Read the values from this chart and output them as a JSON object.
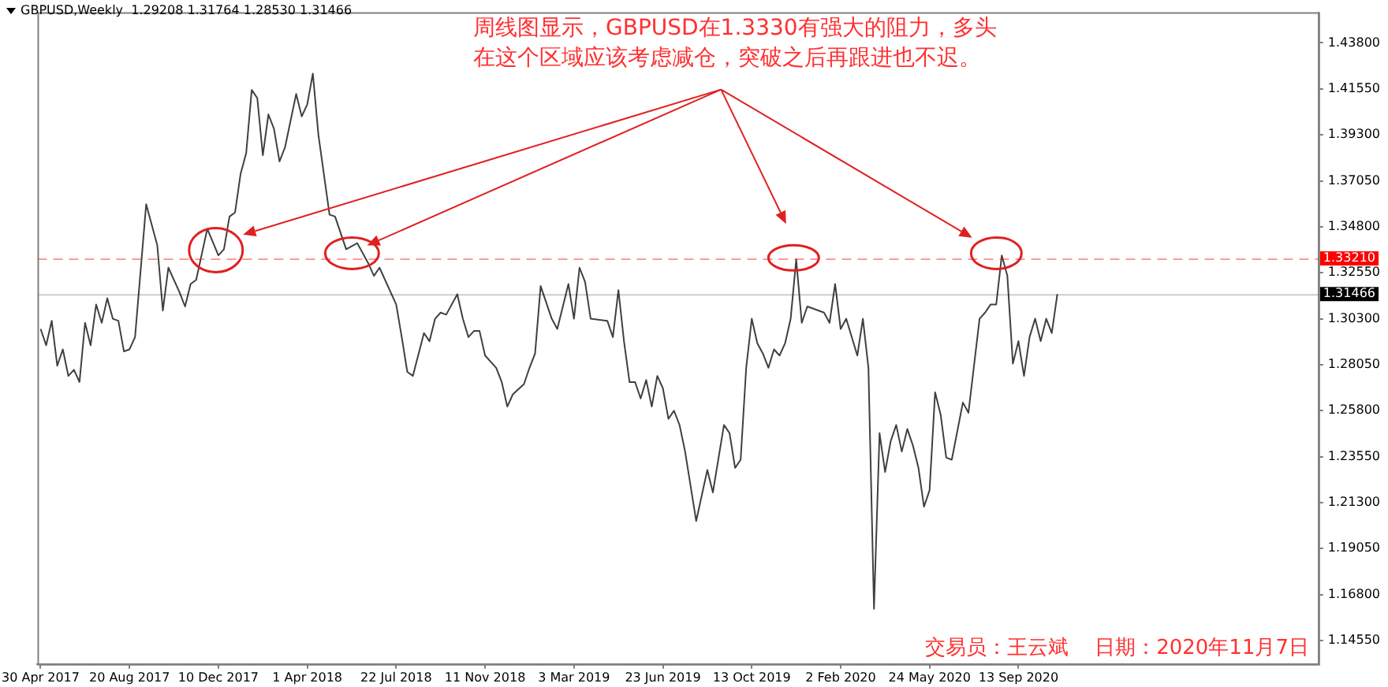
{
  "chart_data": {
    "type": "line",
    "title": "GBPUSD,Weekly  1.29208 1.31764 1.28530 1.31466",
    "annotations": [
      "周线图显示，GBPUSD在1.3330有强大的阻力，多头在这个区域应该考虑减仓，突破之后再跟进也不迟。",
      "交易员：王云斌    日期：2020年11月7日"
    ],
    "x": [
      "2017-04-30",
      "2017-05-07",
      "2017-05-14",
      "2017-05-21",
      "2017-05-28",
      "2017-06-04",
      "2017-06-11",
      "2017-06-18",
      "2017-06-25",
      "2017-07-02",
      "2017-07-09",
      "2017-07-16",
      "2017-07-23",
      "2017-07-30",
      "2017-08-06",
      "2017-08-13",
      "2017-08-20",
      "2017-08-27",
      "2017-09-10",
      "2017-09-24",
      "2017-10-01",
      "2017-10-08",
      "2017-10-22",
      "2017-10-29",
      "2017-11-05",
      "2017-11-12",
      "2017-11-26",
      "2017-12-10",
      "2017-12-17",
      "2017-12-24",
      "2017-12-31",
      "2018-01-07",
      "2018-01-14",
      "2018-01-21",
      "2018-01-28",
      "2018-02-04",
      "2018-02-11",
      "2018-02-18",
      "2018-02-25",
      "2018-03-04",
      "2018-03-18",
      "2018-03-25",
      "2018-04-01",
      "2018-04-08",
      "2018-04-15",
      "2018-04-29",
      "2018-05-06",
      "2018-05-20",
      "2018-06-03",
      "2018-06-17",
      "2018-06-24",
      "2018-07-01",
      "2018-07-15",
      "2018-07-22",
      "2018-07-29",
      "2018-08-05",
      "2018-08-12",
      "2018-08-26",
      "2018-09-02",
      "2018-09-09",
      "2018-09-16",
      "2018-09-23",
      "2018-10-07",
      "2018-10-14",
      "2018-10-21",
      "2018-10-28",
      "2018-11-04",
      "2018-11-11",
      "2018-11-25",
      "2018-12-02",
      "2018-12-09",
      "2018-12-16",
      "2018-12-30",
      "2019-01-06",
      "2019-01-13",
      "2019-01-20",
      "2019-02-03",
      "2019-02-10",
      "2019-02-24",
      "2019-03-03",
      "2019-03-10",
      "2019-03-17",
      "2019-03-24",
      "2019-04-14",
      "2019-04-21",
      "2019-04-28",
      "2019-05-05",
      "2019-05-12",
      "2019-05-19",
      "2019-05-26",
      "2019-06-02",
      "2019-06-09",
      "2019-06-16",
      "2019-06-23",
      "2019-06-30",
      "2019-07-07",
      "2019-07-14",
      "2019-07-21",
      "2019-08-04",
      "2019-08-18",
      "2019-08-25",
      "2019-09-08",
      "2019-09-15",
      "2019-09-22",
      "2019-09-29",
      "2019-10-06",
      "2019-10-13",
      "2019-10-20",
      "2019-10-27",
      "2019-11-03",
      "2019-11-10",
      "2019-11-17",
      "2019-11-24",
      "2019-12-01",
      "2019-12-08",
      "2019-12-15",
      "2019-12-22",
      "2020-01-12",
      "2020-01-19",
      "2020-01-26",
      "2020-02-02",
      "2020-02-09",
      "2020-02-23",
      "2020-03-01",
      "2020-03-08",
      "2020-03-15",
      "2020-03-22",
      "2020-03-29",
      "2020-04-05",
      "2020-04-12",
      "2020-04-19",
      "2020-04-26",
      "2020-05-03",
      "2020-05-10",
      "2020-05-17",
      "2020-05-24",
      "2020-05-31",
      "2020-06-07",
      "2020-06-14",
      "2020-06-21",
      "2020-07-05",
      "2020-07-12",
      "2020-07-26",
      "2020-08-02",
      "2020-08-09",
      "2020-08-16",
      "2020-08-23",
      "2020-08-30",
      "2020-09-06",
      "2020-09-13",
      "2020-09-20",
      "2020-09-27",
      "2020-10-04",
      "2020-10-11",
      "2020-10-18",
      "2020-10-25",
      "2020-11-01"
    ],
    "series": [
      {
        "color": "#404040",
        "values": [
          1.298,
          1.29,
          1.302,
          1.28,
          1.288,
          1.275,
          1.278,
          1.272,
          1.301,
          1.29,
          1.31,
          1.301,
          1.313,
          1.303,
          1.302,
          1.287,
          1.288,
          1.294,
          1.359,
          1.339,
          1.307,
          1.328,
          1.316,
          1.309,
          1.32,
          1.322,
          1.347,
          1.334,
          1.337,
          1.353,
          1.355,
          1.374,
          1.384,
          1.415,
          1.411,
          1.383,
          1.403,
          1.396,
          1.38,
          1.387,
          1.413,
          1.402,
          1.408,
          1.423,
          1.393,
          1.354,
          1.353,
          1.337,
          1.34,
          1.33,
          1.324,
          1.328,
          1.316,
          1.31,
          1.294,
          1.277,
          1.275,
          1.296,
          1.292,
          1.303,
          1.306,
          1.305,
          1.315,
          1.303,
          1.294,
          1.297,
          1.297,
          1.285,
          1.279,
          1.272,
          1.26,
          1.266,
          1.271,
          1.279,
          1.286,
          1.319,
          1.303,
          1.298,
          1.32,
          1.303,
          1.328,
          1.321,
          1.303,
          1.302,
          1.294,
          1.317,
          1.292,
          1.272,
          1.272,
          1.264,
          1.273,
          1.26,
          1.275,
          1.269,
          1.254,
          1.258,
          1.251,
          1.238,
          1.204,
          1.229,
          1.218,
          1.251,
          1.247,
          1.23,
          1.234,
          1.279,
          1.303,
          1.291,
          1.286,
          1.279,
          1.288,
          1.285,
          1.291,
          1.303,
          1.332,
          1.301,
          1.309,
          1.306,
          1.301,
          1.32,
          1.298,
          1.303,
          1.285,
          1.303,
          1.279,
          1.161,
          1.247,
          1.228,
          1.243,
          1.251,
          1.238,
          1.249,
          1.241,
          1.23,
          1.211,
          1.219,
          1.267,
          1.256,
          1.235,
          1.234,
          1.262,
          1.257,
          1.303,
          1.306,
          1.31,
          1.31,
          1.334,
          1.324,
          1.281,
          1.292,
          1.275,
          1.294,
          1.303,
          1.292,
          1.303,
          1.296,
          1.315
        ]
      }
    ],
    "xlim": [
      "2017-04-26",
      "2021-09-26"
    ],
    "xticks": [
      {
        "value": "2017-04-30",
        "label": "30 Apr 2017"
      },
      {
        "value": "2017-08-20",
        "label": "20 Aug 2017"
      },
      {
        "value": "2017-12-10",
        "label": "10 Dec 2017"
      },
      {
        "value": "2018-04-01",
        "label": "1 Apr 2018"
      },
      {
        "value": "2018-07-22",
        "label": "22 Jul 2018"
      },
      {
        "value": "2018-11-11",
        "label": "11 Nov 2018"
      },
      {
        "value": "2019-03-03",
        "label": "3 Mar 2019"
      },
      {
        "value": "2019-06-23",
        "label": "23 Jun 2019"
      },
      {
        "value": "2019-10-13",
        "label": "13 Oct 2019"
      },
      {
        "value": "2020-02-02",
        "label": "2 Feb 2020"
      },
      {
        "value": "2020-05-24",
        "label": "24 May 2020"
      },
      {
        "value": "2020-09-13",
        "label": "13 Sep 2020"
      }
    ],
    "ylim": [
      1.134,
      1.453
    ],
    "yticks": [
      {
        "value": 1.438,
        "label": "1.43800"
      },
      {
        "value": 1.4155,
        "label": "1.41550"
      },
      {
        "value": 1.393,
        "label": "1.39300"
      },
      {
        "value": 1.3705,
        "label": "1.37050"
      },
      {
        "value": 1.348,
        "label": "1.34800"
      },
      {
        "value": 1.3255,
        "label": "1.32550"
      },
      {
        "value": 1.303,
        "label": "1.30300"
      },
      {
        "value": 1.2805,
        "label": "1.28050"
      },
      {
        "value": 1.258,
        "label": "1.25800"
      },
      {
        "value": 1.2355,
        "label": "1.23550"
      },
      {
        "value": 1.213,
        "label": "1.21300"
      },
      {
        "value": 1.1905,
        "label": "1.19050"
      },
      {
        "value": 1.168,
        "label": "1.16800"
      },
      {
        "value": 1.1455,
        "label": "1.14550"
      }
    ],
    "ref_lines": [
      {
        "axis": "y",
        "value": 1.3321,
        "label": "1.33210",
        "color": "#ff0000",
        "line_style": "dashed"
      },
      {
        "axis": "y",
        "value": 1.31466,
        "label": "1.31466",
        "color": "#000000",
        "line_style": "solid"
      }
    ],
    "marker": "none"
  }
}
